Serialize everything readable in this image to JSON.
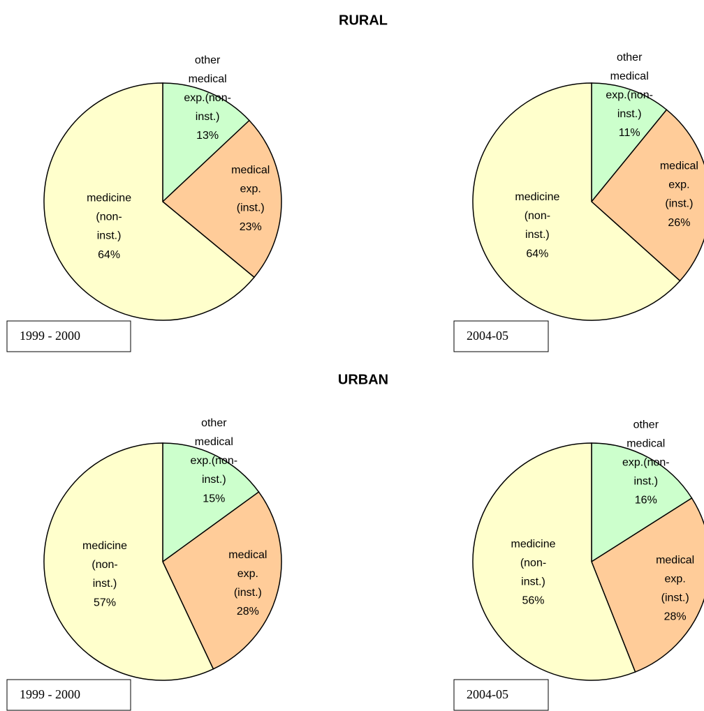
{
  "section_titles": [
    "RURAL",
    "URBAN"
  ],
  "chart_data": [
    {
      "type": "pie",
      "annotations": [
        "1999 - 2000"
      ],
      "categories": [
        "other medical exp.(non-inst.)",
        "medical exp. (inst.)",
        "medicine (non-inst.)"
      ],
      "values": [
        13,
        23,
        64
      ],
      "value_labels": [
        "13%",
        "23%",
        "64%"
      ],
      "colors": [
        "#ccffcc",
        "#ffcc99",
        "#ffffcc"
      ]
    },
    {
      "type": "pie",
      "annotations": [
        "2004-05"
      ],
      "categories": [
        "other medical exp.(non-inst.)",
        "medical exp. (inst.)",
        "medicine (non-inst.)"
      ],
      "values": [
        11,
        26,
        64
      ],
      "value_labels": [
        "11%",
        "26%",
        "64%"
      ],
      "colors": [
        "#ccffcc",
        "#ffcc99",
        "#ffffcc"
      ]
    },
    {
      "type": "pie",
      "annotations": [
        "1999 - 2000"
      ],
      "categories": [
        "other medical exp.(non-inst.)",
        "medical exp. (inst.)",
        "medicine (non-inst.)"
      ],
      "values": [
        15,
        28,
        57
      ],
      "value_labels": [
        "15%",
        "28%",
        "57%"
      ],
      "colors": [
        "#ccffcc",
        "#ffcc99",
        "#ffffcc"
      ]
    },
    {
      "type": "pie",
      "annotations": [
        "2004-05"
      ],
      "categories": [
        "other medical exp.(non-inst.)",
        "medical exp. (inst.)",
        "medicine (non-inst.)"
      ],
      "values": [
        16,
        28,
        56
      ],
      "value_labels": [
        "16%",
        "28%",
        "56%"
      ],
      "colors": [
        "#ccffcc",
        "#ffcc99",
        "#ffffcc"
      ]
    }
  ]
}
